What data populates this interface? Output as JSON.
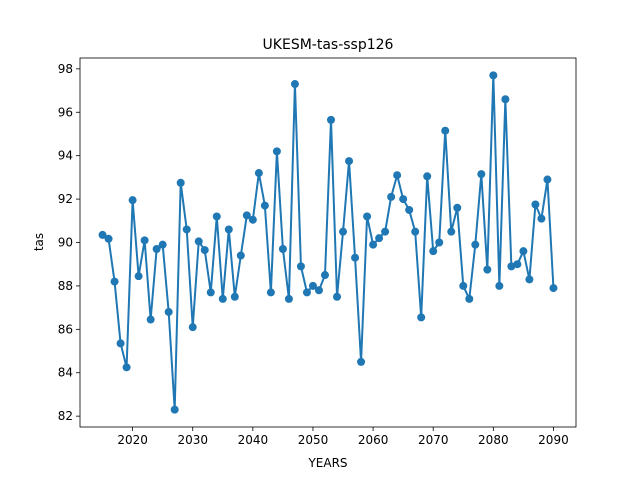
{
  "chart_data": {
    "type": "line",
    "title": "UKESM-tas-ssp126",
    "xlabel": "YEARS",
    "ylabel": "tas",
    "xlim": [
      2011.25,
      2093.75
    ],
    "ylim": [
      81.5,
      98.5
    ],
    "xticks": [
      2020,
      2030,
      2040,
      2050,
      2060,
      2070,
      2080,
      2090
    ],
    "yticks": [
      82,
      84,
      86,
      88,
      90,
      92,
      94,
      96,
      98
    ],
    "grid": false,
    "legend": "none",
    "series": [
      {
        "name": "tas",
        "color": "#1f77b4",
        "marker": "circle",
        "x": [
          2015,
          2016,
          2017,
          2018,
          2019,
          2020,
          2021,
          2022,
          2023,
          2024,
          2025,
          2026,
          2027,
          2028,
          2029,
          2030,
          2031,
          2032,
          2033,
          2034,
          2035,
          2036,
          2037,
          2038,
          2039,
          2040,
          2041,
          2042,
          2043,
          2044,
          2045,
          2046,
          2047,
          2048,
          2049,
          2050,
          2051,
          2052,
          2053,
          2054,
          2055,
          2056,
          2057,
          2058,
          2059,
          2060,
          2061,
          2062,
          2063,
          2064,
          2065,
          2066,
          2067,
          2068,
          2069,
          2070,
          2071,
          2072,
          2073,
          2074,
          2075,
          2076,
          2077,
          2078,
          2079,
          2080,
          2081,
          2082,
          2083,
          2084,
          2085,
          2086,
          2087,
          2088,
          2089,
          2090
        ],
        "values": [
          90.35,
          90.17,
          88.2,
          85.35,
          84.25,
          91.95,
          88.45,
          90.1,
          86.45,
          89.7,
          89.9,
          86.8,
          82.3,
          92.75,
          90.6,
          86.1,
          90.05,
          89.65,
          87.7,
          91.2,
          87.4,
          90.6,
          87.5,
          89.4,
          91.25,
          91.05,
          93.2,
          91.7,
          87.7,
          94.2,
          89.7,
          87.4,
          97.3,
          88.9,
          87.7,
          88.0,
          87.8,
          88.5,
          95.65,
          87.5,
          90.5,
          93.75,
          89.3,
          84.5,
          91.2,
          89.9,
          90.2,
          90.5,
          92.1,
          93.1,
          92.0,
          91.5,
          90.5,
          86.55,
          93.05,
          89.6,
          90.0,
          95.15,
          90.5,
          91.6,
          88.0,
          87.4,
          89.9,
          93.15,
          88.75,
          97.7,
          88.0,
          96.6,
          88.9,
          89.0,
          89.6,
          88.3,
          91.75,
          91.1,
          92.9,
          87.9
        ]
      }
    ]
  }
}
